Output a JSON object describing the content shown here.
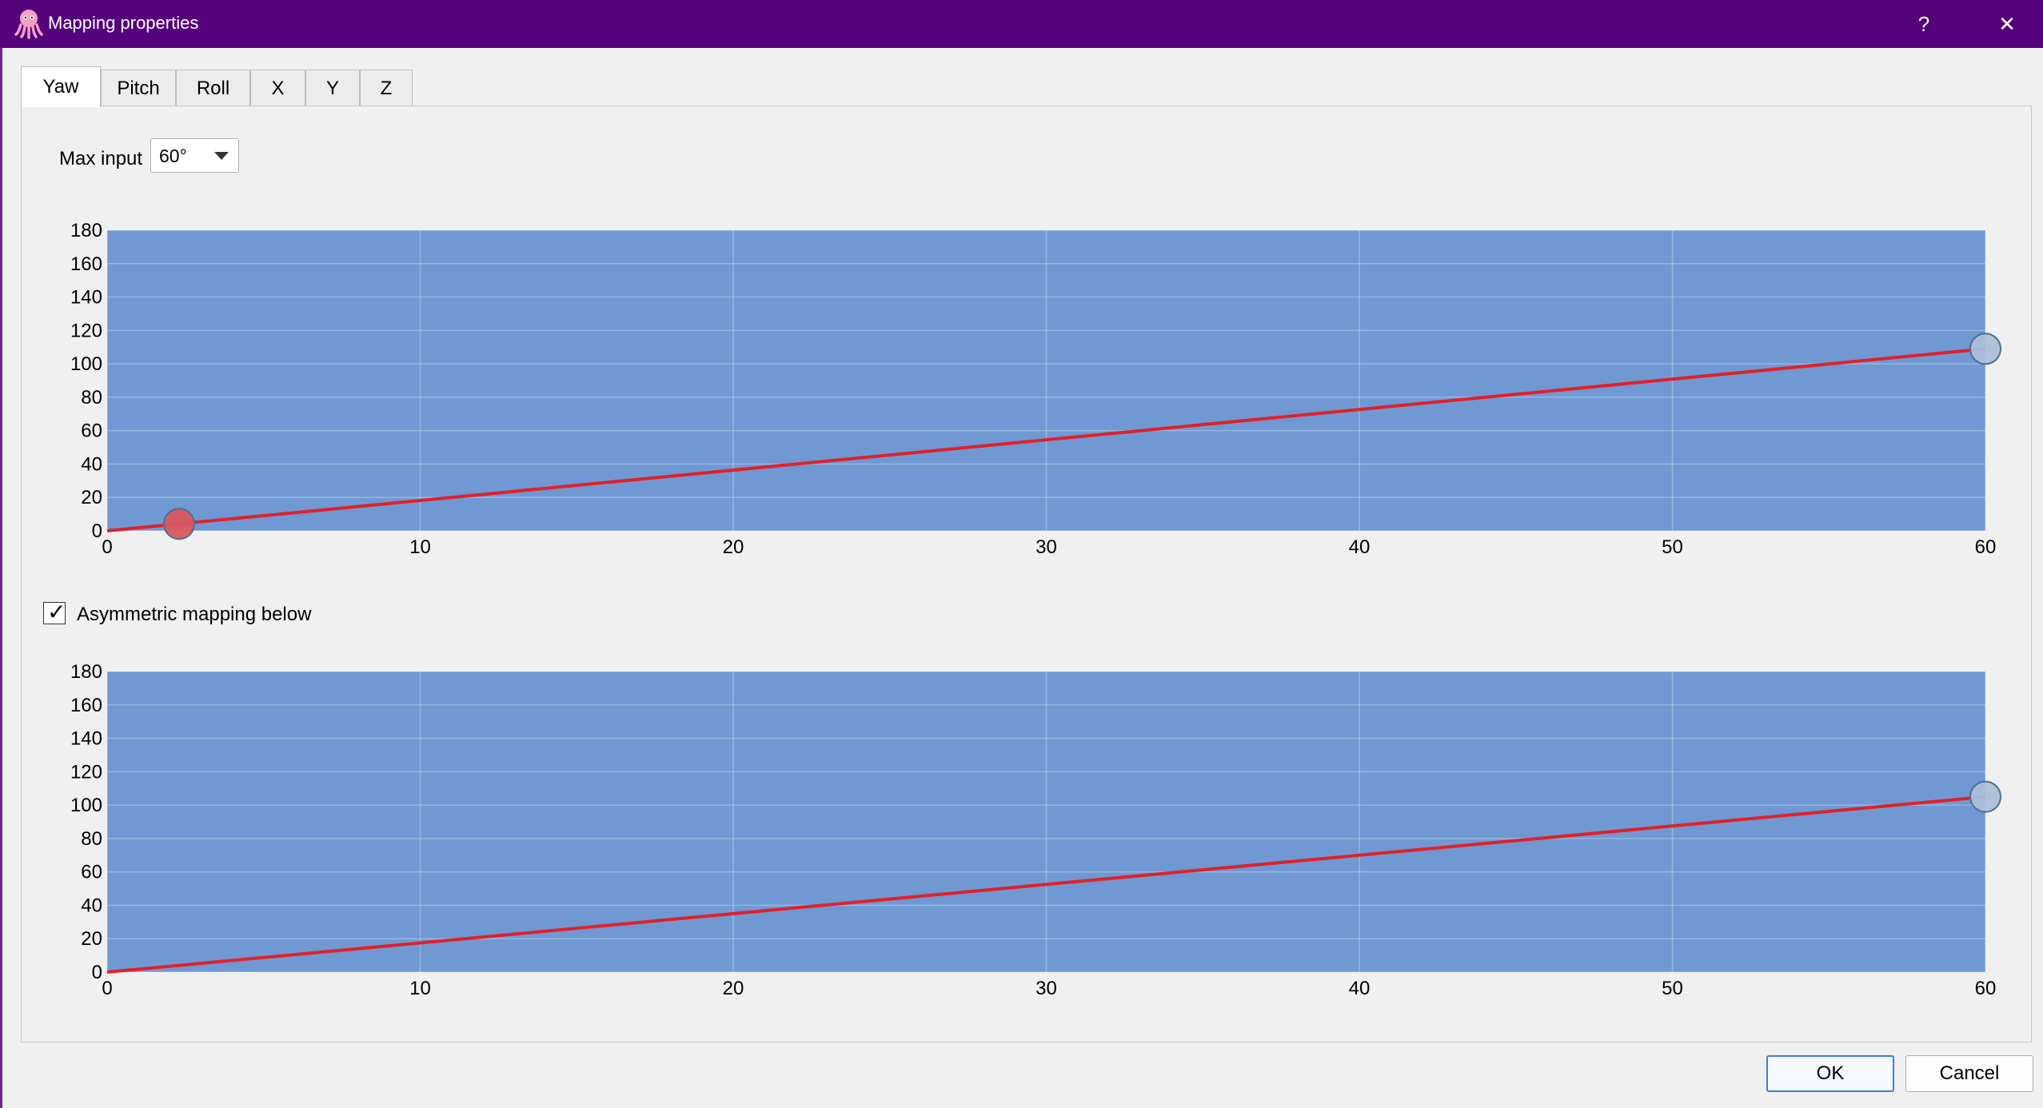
{
  "window": {
    "title": "Mapping properties",
    "help_label": "?",
    "close_label": "✕",
    "app_icon": "octopus-icon",
    "accent_color": "#55037d"
  },
  "tabs": [
    {
      "label": "Yaw",
      "active": true
    },
    {
      "label": "Pitch",
      "active": false
    },
    {
      "label": "Roll",
      "active": false
    },
    {
      "label": "X",
      "active": false
    },
    {
      "label": "Y",
      "active": false
    },
    {
      "label": "Z",
      "active": false
    }
  ],
  "max_input": {
    "label": "Max input",
    "value": "60°"
  },
  "asymmetric": {
    "label": "Asymmetric mapping below",
    "checked": true,
    "check_glyph": "✓"
  },
  "buttons": {
    "ok": "OK",
    "cancel": "Cancel"
  },
  "chart_data": [
    {
      "type": "line",
      "x_ticks": [
        "0",
        "10",
        "20",
        "30",
        "40",
        "50",
        "60"
      ],
      "y_ticks": [
        "0",
        "20",
        "40",
        "60",
        "80",
        "100",
        "120",
        "140",
        "160",
        "180"
      ],
      "xlim": [
        0,
        60
      ],
      "ylim": [
        0,
        180
      ],
      "grid": true,
      "background_color": "#7099d3",
      "line_color": "#e0202a",
      "series": [
        {
          "x": [
            0,
            60
          ],
          "y": [
            0,
            109
          ]
        }
      ],
      "control_points": [
        {
          "x": 2.3,
          "y": 4.2,
          "color": "#d9575e",
          "selected": true
        },
        {
          "x": 60,
          "y": 109,
          "color": "#aabfd9",
          "selected": false
        }
      ]
    },
    {
      "type": "line",
      "x_ticks": [
        "0",
        "10",
        "20",
        "30",
        "40",
        "50",
        "60"
      ],
      "y_ticks": [
        "0",
        "20",
        "40",
        "60",
        "80",
        "100",
        "120",
        "140",
        "160",
        "180"
      ],
      "xlim": [
        0,
        60
      ],
      "ylim": [
        0,
        180
      ],
      "grid": true,
      "background_color": "#7099d3",
      "line_color": "#e0202a",
      "series": [
        {
          "x": [
            0,
            60
          ],
          "y": [
            0,
            105
          ]
        }
      ],
      "control_points": [
        {
          "x": 60,
          "y": 105,
          "color": "#aabfd9",
          "selected": false
        }
      ]
    }
  ]
}
